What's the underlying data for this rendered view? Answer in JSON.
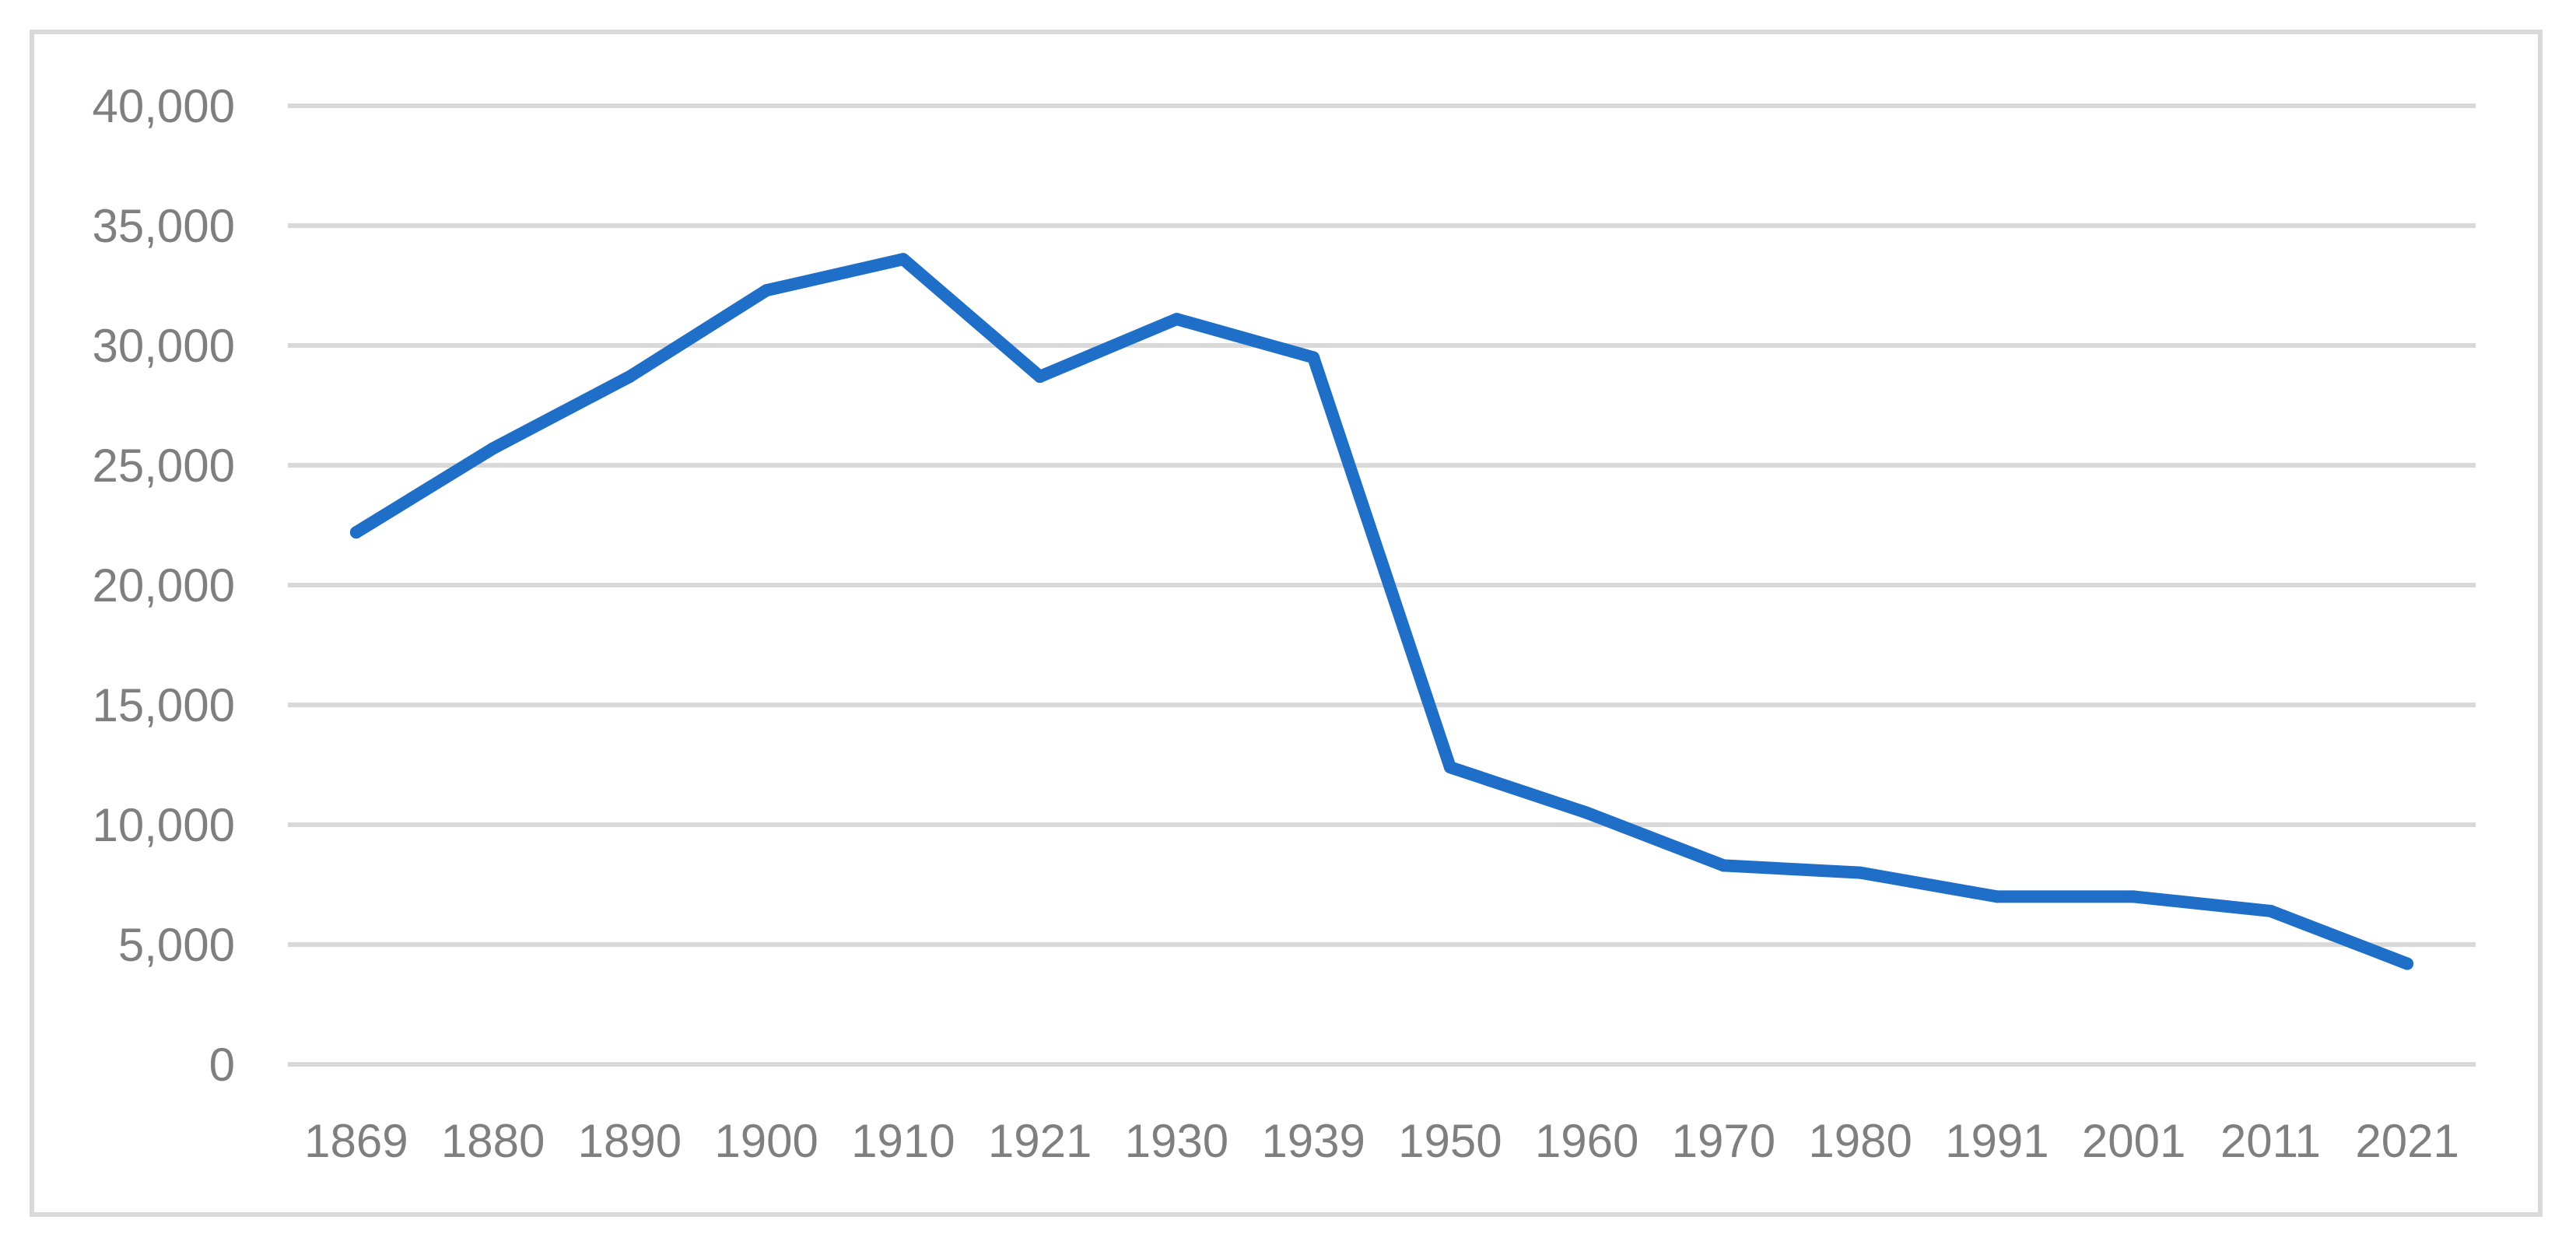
{
  "chart_data": {
    "type": "line",
    "title": "",
    "xlabel": "",
    "ylabel": "",
    "categories": [
      "1869",
      "1880",
      "1890",
      "1900",
      "1910",
      "1921",
      "1930",
      "1939",
      "1950",
      "1960",
      "1970",
      "1980",
      "1991",
      "2001",
      "2011",
      "2021"
    ],
    "series": [
      {
        "values": [
          22200,
          25700,
          28700,
          32300,
          33600,
          28700,
          31100,
          29500,
          12400,
          10500,
          8300,
          8000,
          7000,
          7000,
          6400,
          4200
        ],
        "color": "#1f6fc8"
      }
    ],
    "ylim": [
      0,
      40000
    ],
    "y_ticks": [
      0,
      5000,
      10000,
      15000,
      20000,
      25000,
      30000,
      35000,
      40000
    ],
    "y_tick_labels": [
      "0",
      "5,000",
      "10,000",
      "15,000",
      "20,000",
      "25,000",
      "30,000",
      "35,000",
      "40,000"
    ],
    "grid": true,
    "legend": "none",
    "colors": {
      "gridline": "#d9d9d9",
      "tick_text": "#7f7f7f",
      "frame": "#d9d9d9"
    }
  }
}
